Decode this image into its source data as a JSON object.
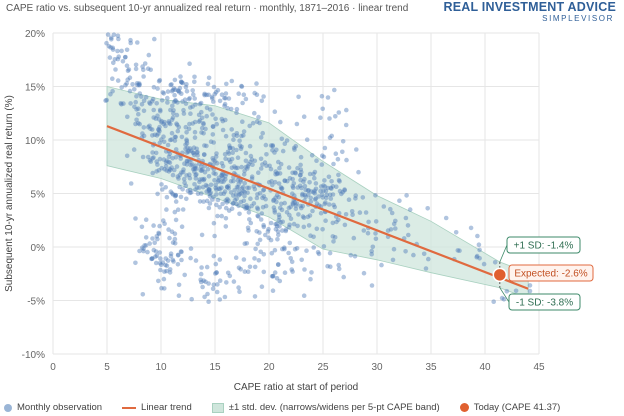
{
  "header": {
    "title": "CAPE ratio vs. subsequent 10-yr annualized real return · monthly, 1871–2016 · linear trend",
    "brand_main": "REAL INVESTMENT ADVICE",
    "brand_sub": "SIMPLEVISOR"
  },
  "colors": {
    "points": "#4f7db8",
    "trend": "#e06a3f",
    "band_fill": "#cfe6dc",
    "band_stroke": "#a9d1c0",
    "today": "#e0602f",
    "sd_box": "#3d8a6a"
  },
  "chart_data": {
    "type": "scatter",
    "xlabel": "CAPE ratio at start of period",
    "ylabel": "Subsequent 10-yr annualized real return (%)",
    "xlim": [
      0,
      45
    ],
    "ylim": [
      -10,
      20
    ],
    "x_ticks": [
      "0",
      "5",
      "10",
      "15",
      "20",
      "25",
      "30",
      "35",
      "40",
      "45"
    ],
    "y_ticks": [
      "-10%",
      "-5%",
      "0%",
      "5%",
      "10%",
      "15%",
      "20%"
    ],
    "grid": true,
    "legend_placement": "bottom",
    "trend_line": {
      "x": [
        5,
        44
      ],
      "y": [
        11.3,
        -3.9
      ]
    },
    "sd_band": {
      "x": [
        5,
        10,
        15,
        20,
        25,
        30,
        35,
        41.37,
        44
      ],
      "upper": [
        15.0,
        13.8,
        13.2,
        11.6,
        8.0,
        4.8,
        2.4,
        -1.4,
        -2.4
      ],
      "lower": [
        7.6,
        6.4,
        4.6,
        2.8,
        -0.2,
        -1.2,
        -2.4,
        -3.8,
        -4.8
      ]
    },
    "today": {
      "x": 41.37,
      "y": -2.6
    },
    "annotations": {
      "upper": "+1 SD: -1.4%",
      "expected": "Expected: -2.6%",
      "lower": "-1 SD: -3.8%"
    },
    "legend": [
      "Monthly observation",
      "Linear trend",
      "±1 std. dev. (narrows/widens per 5-pt CAPE band)",
      "Today (CAPE 41.37)"
    ]
  }
}
